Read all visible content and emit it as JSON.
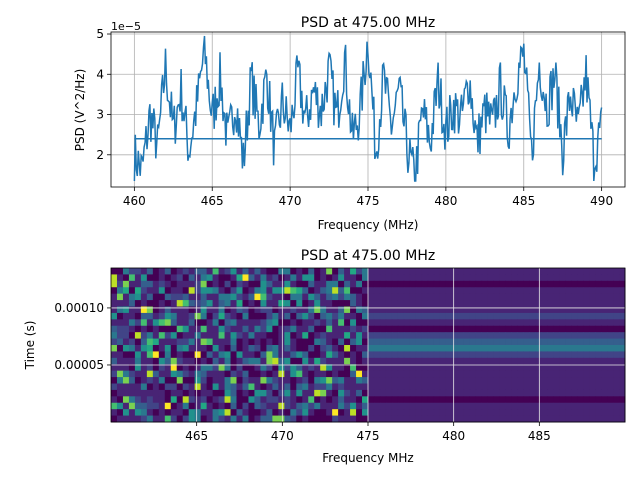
{
  "chart_data": [
    {
      "type": "line",
      "title": "PSD at 475.00 MHz",
      "xlabel": "Frequency (MHz)",
      "ylabel": "PSD (V^2/Hz)",
      "scale_label": "1e−5",
      "xlim": [
        458.5,
        491.5
      ],
      "ylim": [
        1.2,
        5.05
      ],
      "xticks": [
        "460",
        "465",
        "470",
        "475",
        "480",
        "485",
        "490"
      ],
      "yticks": [
        "2",
        "3",
        "4",
        "5"
      ],
      "grid": true,
      "line_color": "#1f77b4",
      "baseline": 2.4,
      "series": [
        {
          "x": [
            460.0,
            460.5,
            461.0,
            461.5,
            462.0,
            462.5,
            463.0,
            463.5,
            464.0,
            464.5,
            465.0,
            465.5,
            466.0,
            466.5,
            467.0,
            467.5,
            468.0,
            468.5,
            469.0,
            469.5,
            470.0,
            470.5,
            471.0,
            471.5,
            472.0,
            472.5,
            473.0,
            473.5,
            474.0,
            474.5,
            475.0,
            475.5,
            476.0,
            476.5,
            477.0,
            477.5,
            478.0,
            478.5,
            479.0,
            479.5,
            480.0,
            480.5,
            481.0,
            481.5,
            482.0,
            482.5,
            483.0,
            483.5,
            484.0,
            484.5,
            485.0,
            485.5,
            486.0,
            486.5,
            487.0,
            487.5,
            488.0,
            488.5,
            489.0,
            489.5,
            490.0
          ],
          "values": [
            2.0,
            1.6,
            3.0,
            2.2,
            4.2,
            2.6,
            3.6,
            2.1,
            3.2,
            4.6,
            2.9,
            3.9,
            2.3,
            3.4,
            1.8,
            3.9,
            2.7,
            4.0,
            2.1,
            3.3,
            2.6,
            4.0,
            2.8,
            3.6,
            3.1,
            4.1,
            2.9,
            4.4,
            2.4,
            3.1,
            4.9,
            2.1,
            3.9,
            2.7,
            3.6,
            2.2,
            1.4,
            3.1,
            2.3,
            3.8,
            2.6,
            3.2,
            2.9,
            3.9,
            2.3,
            3.1,
            2.7,
            3.7,
            2.6,
            3.9,
            4.5,
            2.0,
            4.3,
            3.2,
            4.0,
            2.1,
            3.5,
            2.6,
            4.0,
            1.9,
            2.7
          ]
        }
      ]
    },
    {
      "type": "heatmap",
      "title": "PSD at 475.00 MHz",
      "xlabel": "Frequency MHz",
      "ylabel": "Time (s)",
      "xlim": [
        460.0,
        490.0
      ],
      "ylim": [
        0,
        0.000135
      ],
      "xticks": [
        "465",
        "470",
        "475",
        "480",
        "485"
      ],
      "yticks": [
        "0.00005",
        "0.00010"
      ],
      "grid": true,
      "colormap": "viridis",
      "split_frequency": 475.0,
      "rows": 24,
      "cols": 86
    }
  ]
}
